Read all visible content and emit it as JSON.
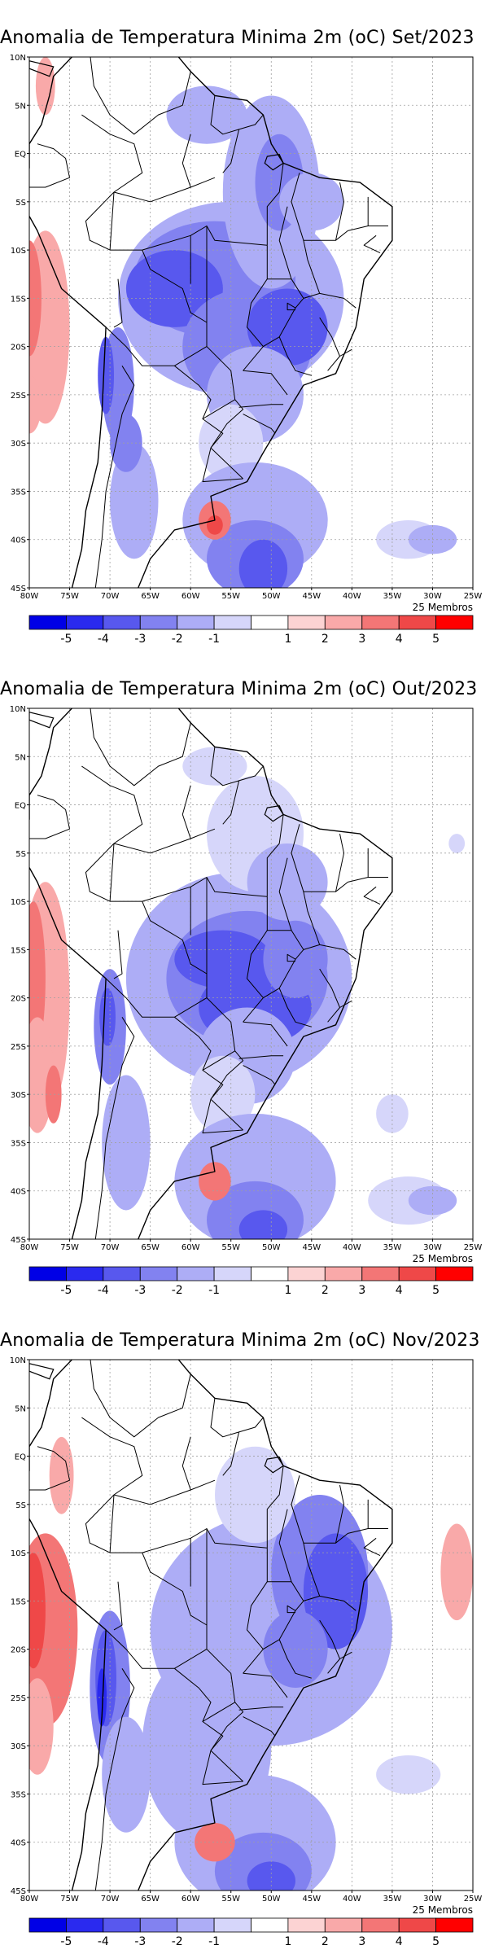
{
  "figure": {
    "members_label": "25 Membros",
    "lon_labels": [
      "80W",
      "75W",
      "70W",
      "65W",
      "60W",
      "55W",
      "50W",
      "45W",
      "40W",
      "35W",
      "30W",
      "25W"
    ],
    "lat_labels": [
      "10N",
      "5N",
      "EQ",
      "5S",
      "10S",
      "15S",
      "20S",
      "25S",
      "30S",
      "35S",
      "40S",
      "45S"
    ],
    "colorbar_labels": [
      "-5",
      "-4",
      "-3",
      "-2",
      "-1",
      "1",
      "2",
      "3",
      "4",
      "5"
    ],
    "colorbar_colors": [
      "#0000e6",
      "#2a2aef",
      "#5858ee",
      "#8282f0",
      "#adadf6",
      "#d6d6fa",
      "#ffffff",
      "#fcd3d3",
      "#f9a9a9",
      "#f37676",
      "#ef4848",
      "#ff0000"
    ],
    "land_color": "#ffffff",
    "coast_color": "#000000"
  },
  "panels": [
    {
      "title": "Anomalia de Temperatura Minima 2m (oC) Set/2023",
      "month": "Set/2023"
    },
    {
      "title": "Anomalia de Temperatura Minima 2m (oC) Out/2023",
      "month": "Out/2023"
    },
    {
      "title": "Anomalia de Temperatura Minima 2m (oC) Nov/2023",
      "month": "Nov/2023"
    }
  ]
}
